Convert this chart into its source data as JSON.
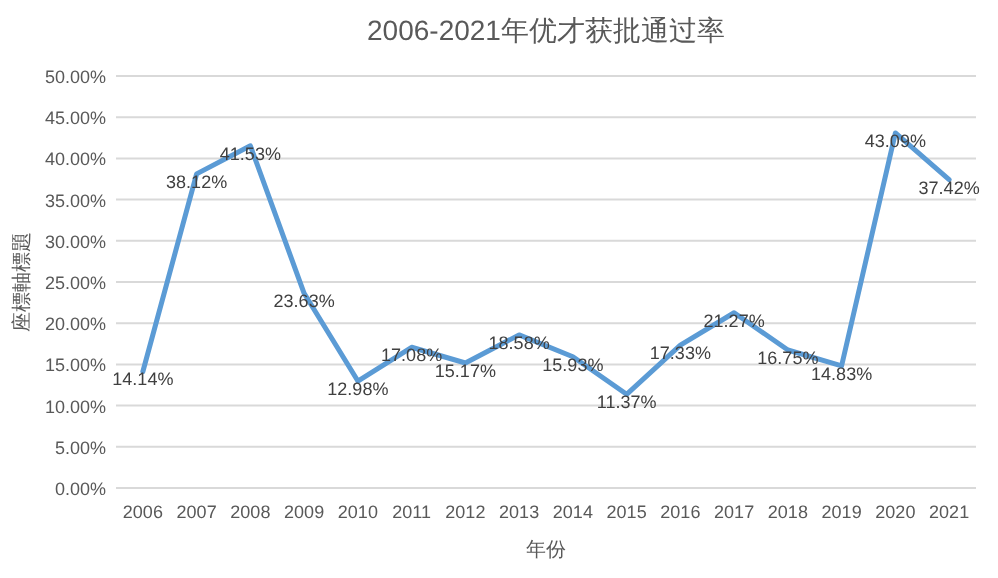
{
  "chart_data": {
    "type": "line",
    "title": "2006-2021年优才获批通过率",
    "xlabel": "年份",
    "ylabel": "座標軸標題",
    "categories": [
      "2006",
      "2007",
      "2008",
      "2009",
      "2010",
      "2011",
      "2012",
      "2013",
      "2014",
      "2015",
      "2016",
      "2017",
      "2018",
      "2019",
      "2020",
      "2021"
    ],
    "series": [
      {
        "color": "#5b9bd5",
        "values": [
          14.14,
          38.12,
          41.53,
          23.63,
          12.98,
          17.08,
          15.17,
          18.58,
          15.93,
          11.37,
          17.33,
          21.27,
          16.75,
          14.83,
          43.09,
          37.42
        ],
        "value_labels": [
          "14.14%",
          "38.12%",
          "41.53%",
          "23.63%",
          "12.98%",
          "17.08%",
          "15.17%",
          "18.58%",
          "15.93%",
          "11.37%",
          "17.33%",
          "21.27%",
          "16.75%",
          "14.83%",
          "43.09%",
          "37.42%"
        ]
      }
    ],
    "ylim": [
      0,
      50
    ],
    "yticks": [
      {
        "value": 0,
        "label": "0.00%"
      },
      {
        "value": 5,
        "label": "5.00%"
      },
      {
        "value": 10,
        "label": "10.00%"
      },
      {
        "value": 15,
        "label": "15.00%"
      },
      {
        "value": 20,
        "label": "20.00%"
      },
      {
        "value": 25,
        "label": "25.00%"
      },
      {
        "value": 30,
        "label": "30.00%"
      },
      {
        "value": 35,
        "label": "35.00%"
      },
      {
        "value": 40,
        "label": "40.00%"
      },
      {
        "value": 45,
        "label": "45.00%"
      },
      {
        "value": 50,
        "label": "50.00%"
      }
    ],
    "grid": "y",
    "marker": "none",
    "line_style": "solid"
  }
}
